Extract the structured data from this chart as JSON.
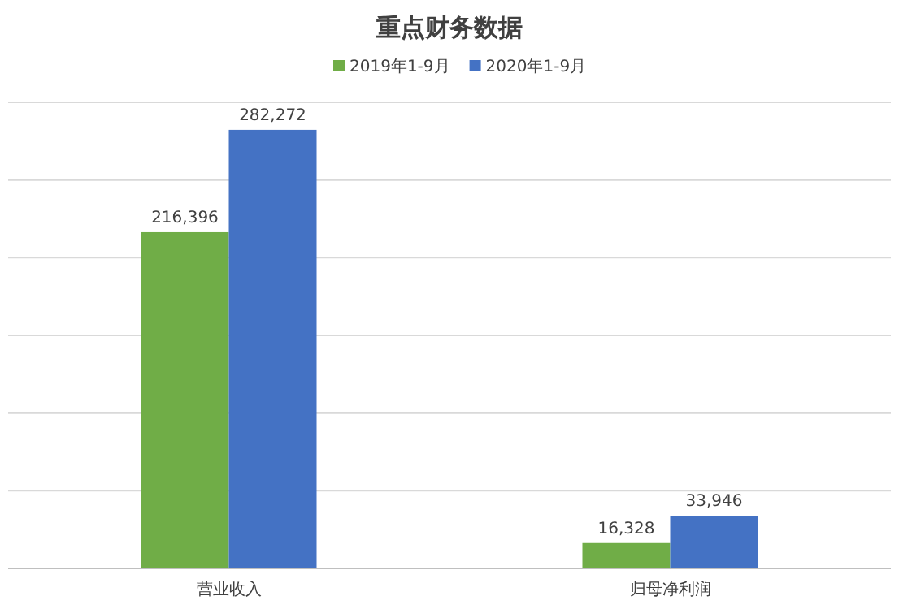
{
  "chart_data": {
    "type": "bar",
    "title": "重点财务数据",
    "categories": [
      "营业收入",
      "归母净利润"
    ],
    "series": [
      {
        "name": "2019年1-9月",
        "color": "#70ad47",
        "values": [
          216396,
          16328
        ],
        "value_labels": [
          "216,396",
          "16,328"
        ]
      },
      {
        "name": "2020年1-9月",
        "color": "#4472c4",
        "values": [
          282272,
          33946
        ],
        "value_labels": [
          "282,272",
          "33,946"
        ]
      }
    ],
    "grid": "y",
    "legend": "top",
    "tick_labels": "x"
  }
}
